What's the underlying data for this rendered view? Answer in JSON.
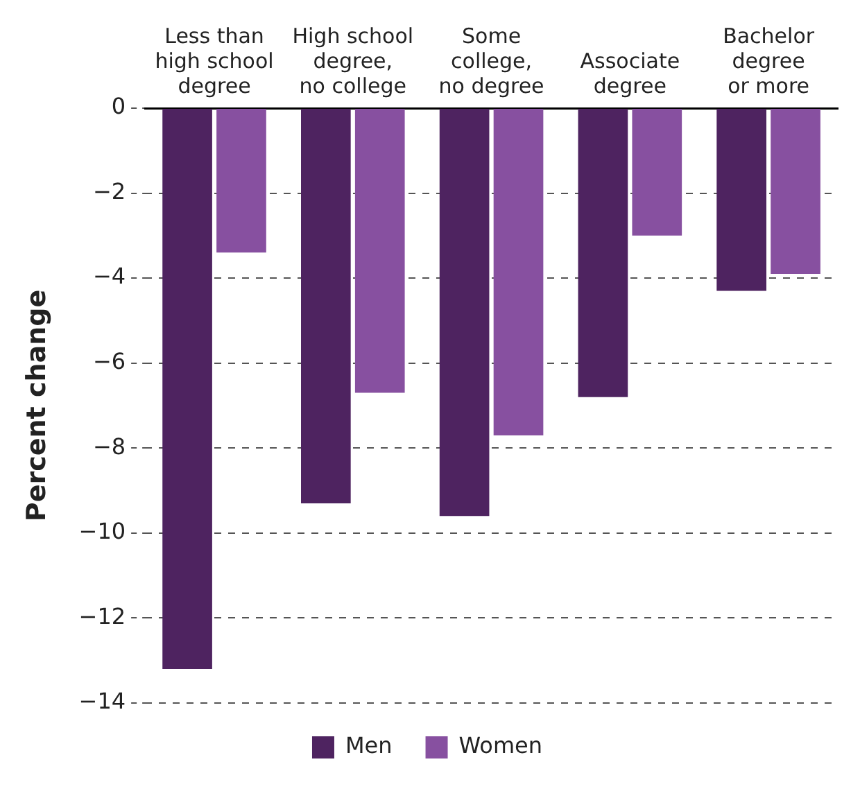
{
  "chart_data": {
    "type": "bar",
    "ylabel": "Percent change",
    "categories": [
      "Less than\nhigh school\ndegree",
      "High school\ndegree,\nno college",
      "Some\ncollege,\nno degree",
      "Associate\ndegree",
      "Bachelor\ndegree\nor more"
    ],
    "series": [
      {
        "name": "Men",
        "color": "#4e2360",
        "values": [
          -13.2,
          -9.3,
          -9.6,
          -6.8,
          -4.3
        ]
      },
      {
        "name": "Women",
        "color": "#8750a0",
        "values": [
          -3.4,
          -6.7,
          -7.7,
          -3.0,
          -3.9
        ]
      }
    ],
    "ylim": [
      -14,
      0
    ],
    "yticks": [
      {
        "value": 0,
        "label": "0"
      },
      {
        "value": -2,
        "label": "−2"
      },
      {
        "value": -4,
        "label": "−4"
      },
      {
        "value": -6,
        "label": "−6"
      },
      {
        "value": -8,
        "label": "−8"
      },
      {
        "value": -10,
        "label": "−10"
      },
      {
        "value": -12,
        "label": "−12"
      },
      {
        "value": -14,
        "label": "−14"
      }
    ],
    "grid": "y",
    "legend": "bottom"
  }
}
